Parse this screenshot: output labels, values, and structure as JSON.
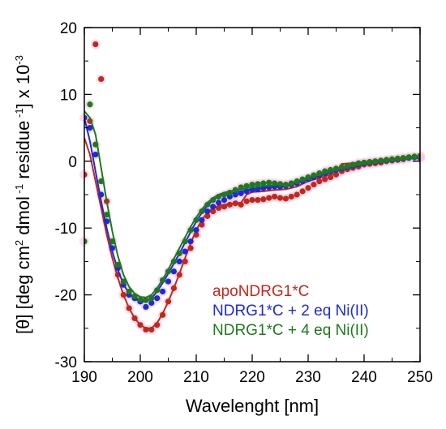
{
  "chart_data": {
    "type": "scatter",
    "xlabel": "Wavelenght [nm]",
    "ylabel": "[θ] [deg cm² dmol⁻¹ residue⁻¹] x 10⁻³",
    "xlim": [
      190,
      250
    ],
    "ylim": [
      -30,
      20
    ],
    "x_ticks": [
      "190",
      "200",
      "210",
      "220",
      "230",
      "240",
      "250"
    ],
    "y_ticks": [
      "20",
      "10",
      "0",
      "-10",
      "-20",
      "-30"
    ],
    "x_tick_values": [
      190,
      200,
      210,
      220,
      230,
      240,
      250
    ],
    "y_tick_values": [
      20,
      10,
      0,
      -10,
      -20,
      -30
    ],
    "grid": false,
    "legend_position": "bottom-right",
    "series": [
      {
        "name": "apoNDRG1*C",
        "color": "#c0281c",
        "points": [
          [
            190,
            -2
          ],
          [
            191,
            6
          ],
          [
            192,
            17.5
          ],
          [
            193,
            12.3
          ],
          [
            194,
            -6
          ],
          [
            195,
            -12
          ],
          [
            196,
            -17
          ],
          [
            197,
            -20
          ],
          [
            198,
            -22
          ],
          [
            199,
            -23.5
          ],
          [
            200,
            -24.5
          ],
          [
            201,
            -25.2
          ],
          [
            202,
            -25.2
          ],
          [
            203,
            -24.5
          ],
          [
            204,
            -23
          ],
          [
            205,
            -21
          ],
          [
            206,
            -19
          ],
          [
            207,
            -17
          ],
          [
            208,
            -15
          ],
          [
            209,
            -13
          ],
          [
            210,
            -11
          ],
          [
            211,
            -9.5
          ],
          [
            212,
            -8.2
          ],
          [
            213,
            -7.5
          ],
          [
            214,
            -7
          ],
          [
            215,
            -6.8
          ],
          [
            216,
            -6.5
          ],
          [
            217,
            -6.3
          ],
          [
            218,
            -6.5
          ],
          [
            219,
            -6
          ],
          [
            220,
            -5.8
          ],
          [
            221,
            -5.8
          ],
          [
            222,
            -5.7
          ],
          [
            223,
            -5.5
          ],
          [
            224,
            -5.3
          ],
          [
            225,
            -5.5
          ],
          [
            226,
            -5.6
          ],
          [
            227,
            -5.3
          ],
          [
            228,
            -5
          ],
          [
            229,
            -4.5
          ],
          [
            230,
            -4
          ],
          [
            231,
            -3.5
          ],
          [
            232,
            -3
          ],
          [
            233,
            -2.7
          ],
          [
            234,
            -2.4
          ],
          [
            235,
            -2
          ],
          [
            236,
            -1.5
          ],
          [
            237,
            -1.2
          ],
          [
            238,
            -1
          ],
          [
            239,
            -0.8
          ],
          [
            240,
            -0.5
          ],
          [
            241,
            -0.4
          ],
          [
            242,
            -0.3
          ],
          [
            243,
            -0.2
          ],
          [
            244,
            0
          ],
          [
            245,
            0.1
          ],
          [
            246,
            0.2
          ],
          [
            247,
            0.3
          ],
          [
            248,
            0.5
          ],
          [
            249,
            0.6
          ],
          [
            250,
            0.5
          ]
        ],
        "fit": [
          [
            190,
            3.5
          ],
          [
            191,
            1
          ],
          [
            192,
            -3
          ],
          [
            193,
            -7
          ],
          [
            194,
            -11
          ],
          [
            195,
            -14.5
          ],
          [
            196,
            -17.5
          ],
          [
            197,
            -20
          ],
          [
            198,
            -22
          ],
          [
            199,
            -23.5
          ],
          [
            200,
            -24.5
          ],
          [
            201,
            -25
          ],
          [
            202,
            -25
          ],
          [
            203,
            -24.2
          ],
          [
            204,
            -22.8
          ],
          [
            205,
            -21
          ],
          [
            206,
            -19
          ],
          [
            207,
            -16.8
          ],
          [
            208,
            -14.5
          ],
          [
            209,
            -12.3
          ],
          [
            210,
            -10.3
          ],
          [
            211,
            -8.8
          ],
          [
            212,
            -7.7
          ],
          [
            213,
            -7
          ],
          [
            214,
            -6.7
          ],
          [
            215,
            -6.5
          ],
          [
            216,
            -6.4
          ],
          [
            217,
            -6.3
          ],
          [
            218,
            -6.2
          ],
          [
            219,
            -5
          ],
          [
            220,
            -4.6
          ],
          [
            222,
            -4.5
          ],
          [
            224,
            -4.3
          ],
          [
            226,
            -4.2
          ],
          [
            228,
            -3.8
          ],
          [
            230,
            -3
          ],
          [
            232,
            -2.5
          ],
          [
            234,
            -2
          ],
          [
            235,
            -1.8
          ],
          [
            236,
            -0.4
          ],
          [
            238,
            -0.3
          ],
          [
            240,
            -0.1
          ],
          [
            242,
            0.1
          ],
          [
            244,
            0.2
          ],
          [
            246,
            0.3
          ],
          [
            248,
            0.4
          ],
          [
            250,
            0.5
          ]
        ]
      },
      {
        "name": "NDRG1*C + 2 eq Ni(II)",
        "color": "#1c2bd6",
        "points": [
          [
            190,
            6.5
          ],
          [
            191,
            5
          ],
          [
            192,
            1
          ],
          [
            193,
            -5
          ],
          [
            194,
            -9
          ],
          [
            195,
            -13
          ],
          [
            196,
            -16
          ],
          [
            197,
            -18.5
          ],
          [
            198,
            -20
          ],
          [
            199,
            -20.5
          ],
          [
            200,
            -21
          ],
          [
            201,
            -21.8
          ],
          [
            202,
            -21.2
          ],
          [
            203,
            -20.5
          ],
          [
            204,
            -19.5
          ],
          [
            205,
            -18
          ],
          [
            206,
            -16.5
          ],
          [
            207,
            -15
          ],
          [
            208,
            -13.5
          ],
          [
            209,
            -12
          ],
          [
            210,
            -10.3
          ],
          [
            211,
            -8.8
          ],
          [
            212,
            -7.5
          ],
          [
            213,
            -6.8
          ],
          [
            214,
            -6.2
          ],
          [
            215,
            -5.8
          ],
          [
            216,
            -5.3
          ],
          [
            217,
            -5
          ],
          [
            218,
            -4.8
          ],
          [
            219,
            -4.5
          ],
          [
            220,
            -4.3
          ],
          [
            221,
            -4.2
          ],
          [
            222,
            -4
          ],
          [
            223,
            -3.9
          ],
          [
            224,
            -3.8
          ],
          [
            225,
            -3.8
          ],
          [
            226,
            -3.7
          ],
          [
            227,
            -3.5
          ],
          [
            228,
            -3.3
          ],
          [
            229,
            -3
          ],
          [
            230,
            -2.7
          ],
          [
            231,
            -2.4
          ],
          [
            232,
            -2.1
          ],
          [
            233,
            -1.8
          ],
          [
            234,
            -1.5
          ],
          [
            235,
            -1.3
          ],
          [
            236,
            -1.1
          ],
          [
            237,
            -0.9
          ],
          [
            238,
            -0.7
          ],
          [
            239,
            -0.5
          ],
          [
            240,
            -0.3
          ],
          [
            241,
            -0.2
          ],
          [
            242,
            -0.1
          ],
          [
            243,
            0
          ],
          [
            244,
            0.1
          ],
          [
            245,
            0.2
          ],
          [
            246,
            0.3
          ],
          [
            247,
            0.4
          ],
          [
            248,
            0.5
          ],
          [
            249,
            0.6
          ],
          [
            250,
            0.6
          ]
        ],
        "fit": [
          [
            190,
            6.5
          ],
          [
            191,
            3
          ],
          [
            192,
            -1.5
          ],
          [
            193,
            -6
          ],
          [
            194,
            -10
          ],
          [
            195,
            -13.5
          ],
          [
            196,
            -16.3
          ],
          [
            197,
            -18.4
          ],
          [
            198,
            -19.8
          ],
          [
            199,
            -20.6
          ],
          [
            200,
            -21
          ],
          [
            201,
            -21
          ],
          [
            202,
            -20.5
          ],
          [
            203,
            -19.5
          ],
          [
            204,
            -18.2
          ],
          [
            205,
            -16.8
          ],
          [
            206,
            -15.3
          ],
          [
            207,
            -13.8
          ],
          [
            208,
            -12.2
          ],
          [
            209,
            -10.6
          ],
          [
            210,
            -9
          ],
          [
            211,
            -7.7
          ],
          [
            212,
            -6.6
          ],
          [
            213,
            -5.8
          ],
          [
            214,
            -5.3
          ],
          [
            215,
            -5
          ],
          [
            216,
            -4.8
          ],
          [
            218,
            -4.5
          ],
          [
            220,
            -4.2
          ],
          [
            222,
            -4
          ],
          [
            224,
            -3.8
          ],
          [
            226,
            -3.6
          ],
          [
            228,
            -3.2
          ],
          [
            230,
            -2.7
          ],
          [
            232,
            -2.2
          ],
          [
            234,
            -1.7
          ],
          [
            236,
            -1.2
          ],
          [
            238,
            -0.8
          ],
          [
            240,
            -0.4
          ],
          [
            242,
            -0.1
          ],
          [
            244,
            0.1
          ],
          [
            246,
            0.3
          ],
          [
            248,
            0.4
          ],
          [
            250,
            0.5
          ]
        ]
      },
      {
        "name": "NDRG1*C + 4 eq Ni(II)",
        "color": "#1d7a1d",
        "points": [
          [
            190,
            -12
          ],
          [
            191,
            8.5
          ],
          [
            192,
            2.5
          ],
          [
            193,
            -3
          ],
          [
            194,
            -8
          ],
          [
            195,
            -12
          ],
          [
            196,
            -15.5
          ],
          [
            197,
            -18
          ],
          [
            198,
            -19.5
          ],
          [
            199,
            -20.2
          ],
          [
            200,
            -20.7
          ],
          [
            201,
            -20.8
          ],
          [
            202,
            -20.5
          ],
          [
            203,
            -19.3
          ],
          [
            204,
            -17.8
          ],
          [
            205,
            -16.5
          ],
          [
            206,
            -15
          ],
          [
            207,
            -13.8
          ],
          [
            208,
            -12
          ],
          [
            209,
            -10.3
          ],
          [
            210,
            -8.8
          ],
          [
            211,
            -7.5
          ],
          [
            212,
            -6.5
          ],
          [
            213,
            -5.8
          ],
          [
            214,
            -5.3
          ],
          [
            215,
            -5
          ],
          [
            216,
            -4.7
          ],
          [
            217,
            -4.3
          ],
          [
            218,
            -3.9
          ],
          [
            219,
            -3.7
          ],
          [
            220,
            -3.5
          ],
          [
            221,
            -3.4
          ],
          [
            222,
            -3.3
          ],
          [
            223,
            -3.2
          ],
          [
            224,
            -3.3
          ],
          [
            225,
            -3.4
          ],
          [
            226,
            -3.5
          ],
          [
            227,
            -3.3
          ],
          [
            228,
            -3
          ],
          [
            229,
            -2.7
          ],
          [
            230,
            -2.4
          ],
          [
            231,
            -2.1
          ],
          [
            232,
            -1.8
          ],
          [
            233,
            -1.5
          ],
          [
            234,
            -1.3
          ],
          [
            235,
            -1.1
          ],
          [
            236,
            -0.9
          ],
          [
            237,
            -0.7
          ],
          [
            238,
            -0.5
          ],
          [
            239,
            -0.3
          ],
          [
            240,
            -0.2
          ],
          [
            241,
            -0.1
          ],
          [
            242,
            0
          ],
          [
            243,
            0.1
          ],
          [
            244,
            0.2
          ],
          [
            245,
            0.3
          ],
          [
            246,
            0.4
          ],
          [
            247,
            0.5
          ],
          [
            248,
            0.6
          ],
          [
            249,
            0.7
          ],
          [
            250,
            0.8
          ]
        ],
        "fit": [
          [
            190,
            7.5
          ],
          [
            191,
            6.5
          ],
          [
            192,
            4
          ],
          [
            193,
            -1
          ],
          [
            194,
            -6
          ],
          [
            195,
            -10.5
          ],
          [
            196,
            -14.2
          ],
          [
            197,
            -17
          ],
          [
            198,
            -18.8
          ],
          [
            199,
            -19.8
          ],
          [
            200,
            -20.3
          ],
          [
            201,
            -20.4
          ],
          [
            202,
            -20
          ],
          [
            203,
            -19
          ],
          [
            204,
            -17.7
          ],
          [
            205,
            -16.2
          ],
          [
            206,
            -14.6
          ],
          [
            207,
            -13
          ],
          [
            208,
            -11.4
          ],
          [
            209,
            -9.8
          ],
          [
            210,
            -8.4
          ],
          [
            211,
            -7.2
          ],
          [
            212,
            -6.2
          ],
          [
            213,
            -5.5
          ],
          [
            214,
            -5
          ],
          [
            215,
            -4.7
          ],
          [
            216,
            -4.5
          ],
          [
            218,
            -4.2
          ],
          [
            220,
            -3.9
          ],
          [
            222,
            -3.7
          ],
          [
            224,
            -3.6
          ],
          [
            226,
            -3.5
          ],
          [
            228,
            -3
          ],
          [
            230,
            -2.5
          ],
          [
            232,
            -2
          ],
          [
            234,
            -1.5
          ],
          [
            236,
            -1.1
          ],
          [
            238,
            -0.7
          ],
          [
            240,
            -0.3
          ],
          [
            242,
            0
          ],
          [
            244,
            0.2
          ],
          [
            246,
            0.4
          ],
          [
            248,
            0.5
          ],
          [
            250,
            0.7
          ]
        ]
      }
    ]
  }
}
